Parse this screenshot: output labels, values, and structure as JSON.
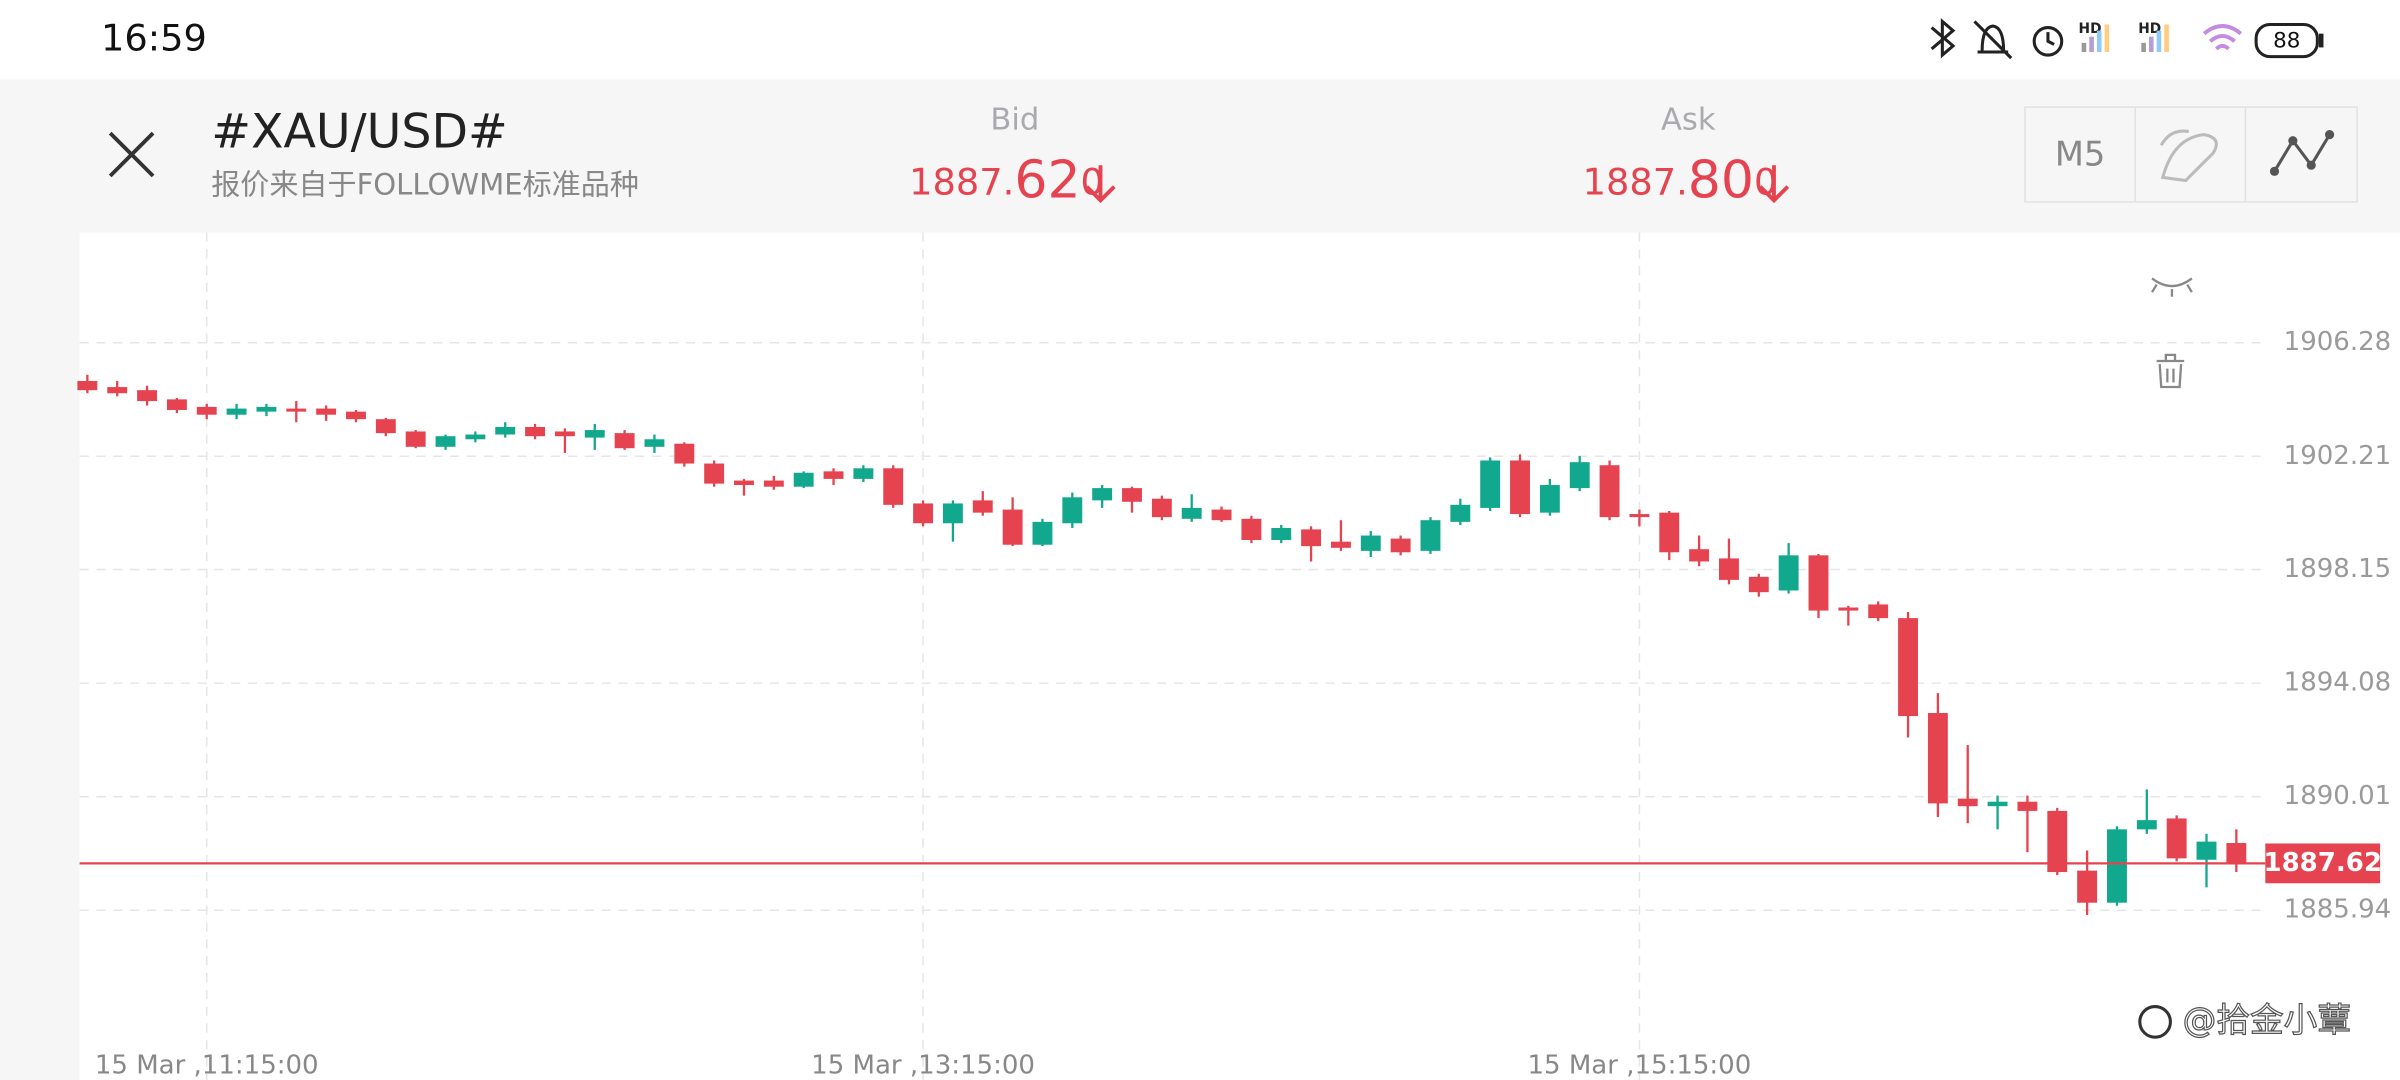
{
  "status_bar": {
    "time": "16:59",
    "battery": "88"
  },
  "header": {
    "title": "#XAU/USD#",
    "subtitle": "报价来自于FOLLOWME标准品种",
    "bid": {
      "label": "Bid",
      "head": "1887.",
      "big": "62",
      "tail": "0"
    },
    "ask": {
      "label": "Ask",
      "head": "1887.",
      "big": "80",
      "tail": "0"
    },
    "timeframe": "M5"
  },
  "watermark": "@拾金小蕈",
  "chart_data": {
    "type": "candlestick",
    "up_color": "#12a88e",
    "down_color": "#e5434f",
    "xlim": [
      -0.26,
      72.97
    ],
    "xticks": [
      {
        "value": 4,
        "label": "15 Mar ,11:15:00"
      },
      {
        "value": 28,
        "label": "15 Mar ,13:15:00"
      },
      {
        "value": 52,
        "label": "15 Mar ,15:15:00"
      }
    ],
    "ylim": [
      1881.83,
      1910.23
    ],
    "yticks": [
      1906.28,
      1902.21,
      1898.15,
      1894.08,
      1890.01,
      1885.94
    ],
    "grid": true,
    "last_price": 1887.62,
    "open": [
      1904.91,
      1904.69,
      1904.58,
      1904.25,
      1903.98,
      1903.7,
      1903.81,
      1903.92,
      1903.92,
      1903.81,
      1903.54,
      1903.1,
      1902.55,
      1902.82,
      1902.99,
      1903.26,
      1903.1,
      1902.88,
      1903.04,
      1902.55,
      1902.66,
      1901.95,
      1901.34,
      1901.34,
      1901.12,
      1901.67,
      1901.4,
      1901.78,
      1900.52,
      1899.81,
      1900.63,
      1900.3,
      1899.04,
      1899.81,
      1900.63,
      1901.07,
      1900.69,
      1899.97,
      1900.3,
      1899.97,
      1899.21,
      1899.59,
      1899.15,
      1898.82,
      1899.26,
      1898.82,
      1899.86,
      1900.36,
      1902.06,
      1900.19,
      1901.07,
      1901.89,
      1900.14,
      1900.19,
      1898.88,
      1898.55,
      1897.89,
      1897.4,
      1898.66,
      1896.79,
      1896.9,
      1896.41,
      1893.01,
      1889.94,
      1889.67,
      1889.83,
      1889.5,
      1887.36,
      1886.21,
      1888.84,
      1889.23,
      1887.75,
      1888.35
    ],
    "high": [
      1905.13,
      1904.91,
      1904.74,
      1904.3,
      1904.09,
      1904.09,
      1904.09,
      1904.19,
      1904.03,
      1903.87,
      1903.59,
      1903.15,
      1902.99,
      1903.1,
      1903.43,
      1903.37,
      1903.21,
      1903.37,
      1903.15,
      1902.99,
      1902.71,
      1902.06,
      1901.4,
      1901.51,
      1901.67,
      1901.78,
      1901.89,
      1901.89,
      1900.63,
      1900.63,
      1900.96,
      1900.74,
      1899.97,
      1900.91,
      1901.18,
      1901.12,
      1900.8,
      1900.85,
      1900.41,
      1900.08,
      1899.75,
      1899.7,
      1899.92,
      1899.53,
      1899.37,
      1900.03,
      1900.69,
      1902.17,
      1902.28,
      1901.4,
      1902.22,
      1902.06,
      1900.3,
      1900.25,
      1899.37,
      1899.26,
      1898.0,
      1899.1,
      1898.71,
      1896.85,
      1897.01,
      1896.63,
      1893.72,
      1891.86,
      1890.05,
      1890.05,
      1889.61,
      1888.08,
      1888.95,
      1890.27,
      1889.34,
      1888.68,
      1888.84
    ],
    "low": [
      1904.47,
      1904.36,
      1904.03,
      1903.76,
      1903.54,
      1903.54,
      1903.65,
      1903.43,
      1903.48,
      1903.43,
      1902.93,
      1902.5,
      1902.44,
      1902.71,
      1902.88,
      1902.82,
      1902.33,
      1902.44,
      1902.44,
      1902.33,
      1901.84,
      1901.12,
      1900.8,
      1901.01,
      1901.07,
      1901.18,
      1901.29,
      1900.36,
      1899.7,
      1899.15,
      1900.08,
      1898.99,
      1898.99,
      1899.64,
      1900.36,
      1900.19,
      1899.92,
      1899.86,
      1899.86,
      1899.1,
      1899.1,
      1898.44,
      1898.82,
      1898.6,
      1898.66,
      1898.71,
      1899.75,
      1900.25,
      1900.03,
      1900.08,
      1900.96,
      1899.92,
      1899.7,
      1898.49,
      1898.27,
      1897.62,
      1897.18,
      1897.29,
      1896.41,
      1896.14,
      1896.3,
      1892.13,
      1889.28,
      1889.06,
      1888.84,
      1888.02,
      1887.2,
      1885.77,
      1886.1,
      1888.68,
      1887.69,
      1886.76,
      1887.31
    ],
    "close": [
      1904.58,
      1904.47,
      1904.19,
      1903.87,
      1903.7,
      1903.92,
      1903.98,
      1903.81,
      1903.7,
      1903.54,
      1903.04,
      1902.55,
      1902.93,
      1902.99,
      1903.26,
      1902.93,
      1902.93,
      1903.15,
      1902.5,
      1902.82,
      1901.95,
      1901.23,
      1901.18,
      1901.12,
      1901.62,
      1901.4,
      1901.78,
      1900.47,
      1899.81,
      1900.52,
      1900.19,
      1899.04,
      1899.86,
      1900.74,
      1901.07,
      1900.58,
      1900.03,
      1900.36,
      1899.92,
      1899.21,
      1899.64,
      1898.99,
      1898.93,
      1899.37,
      1898.77,
      1899.92,
      1900.47,
      1902.06,
      1900.14,
      1901.18,
      1902.0,
      1900.03,
      1900.03,
      1898.77,
      1898.44,
      1897.78,
      1897.34,
      1898.66,
      1896.68,
      1896.68,
      1896.41,
      1892.9,
      1889.77,
      1889.67,
      1889.83,
      1889.5,
      1887.31,
      1886.21,
      1888.84,
      1889.17,
      1887.8,
      1888.4,
      1887.62
    ]
  }
}
